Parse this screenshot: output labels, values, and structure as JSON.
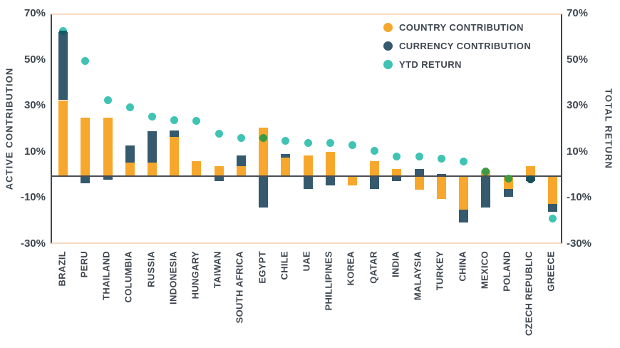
{
  "colors": {
    "country_contribution": "#F7A82C",
    "currency_contribution": "#35596D",
    "ytd_return": "#3FC3B3",
    "ytd_over_country_bar": "#3C9A42",
    "ytd_over_currency_bar": "#145158",
    "ytd_split_lower": "#115A66",
    "axis_text": "#3E4750",
    "zero_line": "#494E54",
    "plot_edge_line": "#F8D9C2",
    "background": "#FFFFFF"
  },
  "legend": [
    {
      "label": "COUNTRY CONTRIBUTION",
      "color": "#F7A82C"
    },
    {
      "label": "CURRENCY CONTRIBUTION",
      "color": "#35596D"
    },
    {
      "label": "YTD RETURN",
      "color": "#3FC3B3"
    }
  ],
  "chart_data": {
    "type": "bar",
    "subtype": "stacked-bar-with-scatter-overlay",
    "title": "",
    "ylabel_left": "ACTIVE CONTRIBUTION",
    "ylabel_right": "TOTAL RETURN",
    "ylim": [
      -30,
      70
    ],
    "yticks": [
      70,
      50,
      30,
      10,
      -10,
      -30
    ],
    "ytick_labels": [
      "70%",
      "50%",
      "30%",
      "10%",
      "-10%",
      "-30%"
    ],
    "grid": "off",
    "legend_position": "top-right-inside",
    "categories": [
      "BRAZIL",
      "PERU",
      "THAILAND",
      "COLUMBIA",
      "RUSSIA",
      "INDONESIA",
      "HUNGARY",
      "TAIWAN",
      "SOUTH AFRICA",
      "EGYPT",
      "CHILE",
      "UAE",
      "PHILLIPINES",
      "KOREA",
      "QATAR",
      "INDIA",
      "MALAYSIA",
      "TURKEY",
      "CHINA",
      "MEXICO",
      "POLAND",
      "CZECH REPUBLIC",
      "GREECE"
    ],
    "series": [
      {
        "name": "COUNTRY CONTRIBUTION",
        "type": "bar",
        "values": [
          33,
          25.5,
          25.5,
          6,
          6,
          17,
          6.5,
          4.5,
          4.5,
          21,
          8,
          9,
          10.5,
          -4,
          6.5,
          3,
          -6,
          -10,
          -14.5,
          2.5,
          -5.5,
          4.5,
          -12
        ]
      },
      {
        "name": "CURRENCY CONTRIBUTION",
        "type": "bar",
        "values": [
          29.5,
          -3,
          -1.5,
          7.5,
          13.5,
          3,
          0,
          -2,
          4.5,
          -13.5,
          1.5,
          -5.5,
          -4,
          0,
          -5.5,
          -2,
          3,
          1,
          -5.5,
          -13.5,
          -3.5,
          -2,
          -3.5
        ]
      },
      {
        "name": "YTD RETURN",
        "type": "scatter",
        "values": [
          63,
          50,
          33,
          30,
          26,
          24.5,
          24,
          18.5,
          16.5,
          16.5,
          15.5,
          14.5,
          14.5,
          13.5,
          11,
          8.5,
          8.5,
          7.5,
          6.5,
          2,
          -1,
          -1.5,
          -18.5
        ]
      }
    ],
    "dot_variants": [
      "split",
      "teal",
      "teal",
      "teal",
      "teal",
      "teal",
      "teal",
      "teal",
      "teal",
      "green",
      "teal",
      "teal",
      "teal",
      "teal",
      "teal",
      "teal",
      "teal",
      "teal",
      "teal",
      "green",
      "green",
      "dark",
      "teal"
    ]
  }
}
